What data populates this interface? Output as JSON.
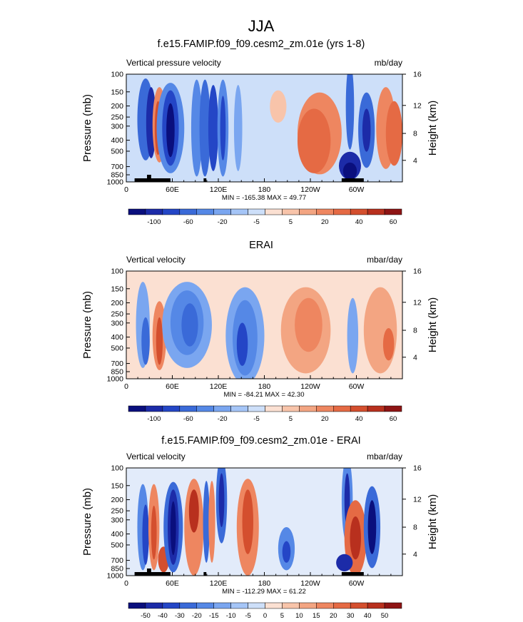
{
  "figure": {
    "title": "JJA"
  },
  "chart_data": [
    {
      "type": "heatmap",
      "title": "f.e15.FAMIP.f09_f09.cesm2_zm.01e (yrs 1-8)",
      "left_label": "Vertical pressure velocity",
      "units": "mb/day",
      "xlabel": "",
      "ylabel": "Pressure (mb)",
      "ylabel_right": "Height (km)",
      "x_ticks": [
        "0",
        "60E",
        "120E",
        "180",
        "120W",
        "60W"
      ],
      "y_ticks": [
        "100",
        "150",
        "200",
        "250",
        "300",
        "400",
        "500",
        "700",
        "850",
        "1000"
      ],
      "height_ticks": [
        "16",
        "12",
        "8",
        "4"
      ],
      "min_max_text": "MIN = -165.38   MAX =  49.77",
      "colorbar_labels": [
        "-100",
        "-60",
        "-20",
        "-5",
        "5",
        "20",
        "40",
        "60"
      ],
      "colorbar_colors": [
        "#0a0f7d",
        "#1c2ba8",
        "#2446c6",
        "#3a6ad8",
        "#5588e6",
        "#7aa6f0",
        "#a5c5f7",
        "#cddff9",
        "#fbe0d2",
        "#f8c4aa",
        "#f3a582",
        "#ee8660",
        "#e56a44",
        "#d44f2e",
        "#b8301e",
        "#8e1414"
      ],
      "data_range": [
        -165.38,
        49.77
      ],
      "topography_present": true
    },
    {
      "type": "heatmap",
      "title": "ERAI",
      "left_label": "Vertical velocity",
      "units": "mbar/day",
      "xlabel": "",
      "ylabel": "Pressure (mb)",
      "ylabel_right": "Height (km)",
      "x_ticks": [
        "0",
        "60E",
        "120E",
        "180",
        "120W",
        "60W"
      ],
      "y_ticks": [
        "100",
        "150",
        "200",
        "250",
        "300",
        "400",
        "500",
        "700",
        "850",
        "1000"
      ],
      "height_ticks": [
        "16",
        "12",
        "8",
        "4"
      ],
      "min_max_text": "MIN = -84.21   MAX =  42.30",
      "colorbar_labels": [
        "-100",
        "-60",
        "-20",
        "-5",
        "5",
        "20",
        "40",
        "60"
      ],
      "colorbar_colors": [
        "#0a0f7d",
        "#1c2ba8",
        "#2446c6",
        "#3a6ad8",
        "#5588e6",
        "#7aa6f0",
        "#a5c5f7",
        "#cddff9",
        "#fbe0d2",
        "#f8c4aa",
        "#f3a582",
        "#ee8660",
        "#e56a44",
        "#d44f2e",
        "#b8301e",
        "#8e1414"
      ],
      "data_range": [
        -84.21,
        42.3
      ],
      "topography_present": false
    },
    {
      "type": "heatmap",
      "title": "f.e15.FAMIP.f09_f09.cesm2_zm.01e - ERAI",
      "left_label": "Vertical velocity",
      "units": "mbar/day",
      "xlabel": "",
      "ylabel": "Pressure (mb)",
      "ylabel_right": "Height (km)",
      "x_ticks": [
        "0",
        "60E",
        "120E",
        "180",
        "120W",
        "60W"
      ],
      "y_ticks": [
        "100",
        "150",
        "200",
        "250",
        "300",
        "400",
        "500",
        "700",
        "850",
        "1000"
      ],
      "height_ticks": [
        "16",
        "12",
        "8",
        "4"
      ],
      "min_max_text": "MIN = -112.29   MAX =  61.22",
      "colorbar_labels": [
        "-50",
        "-40",
        "-30",
        "-20",
        "-15",
        "-10",
        "-5",
        "0",
        "5",
        "10",
        "15",
        "20",
        "30",
        "40",
        "50"
      ],
      "colorbar_colors": [
        "#0a0f7d",
        "#1c2ba8",
        "#2446c6",
        "#3a6ad8",
        "#5588e6",
        "#7aa6f0",
        "#a5c5f7",
        "#cddff9",
        "#fbe0d2",
        "#f8c4aa",
        "#f3a582",
        "#ee8660",
        "#e56a44",
        "#d44f2e",
        "#b8301e",
        "#8e1414"
      ],
      "data_range": [
        -112.29,
        61.22
      ],
      "topography_present": true
    }
  ]
}
